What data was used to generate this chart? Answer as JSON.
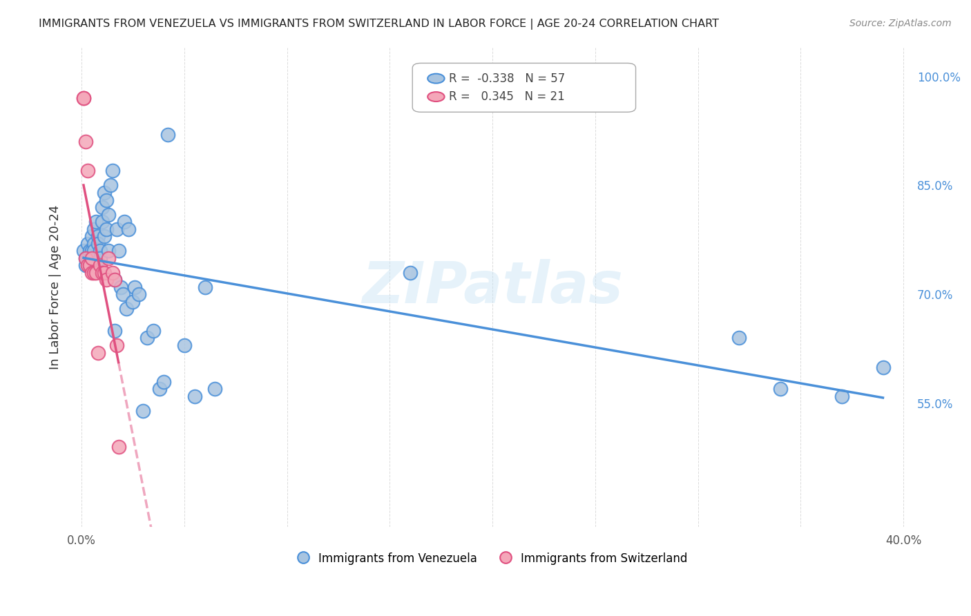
{
  "title": "IMMIGRANTS FROM VENEZUELA VS IMMIGRANTS FROM SWITZERLAND IN LABOR FORCE | AGE 20-24 CORRELATION CHART",
  "source": "Source: ZipAtlas.com",
  "ylabel": "In Labor Force | Age 20-24",
  "xlim": [
    -0.005,
    0.405
  ],
  "ylim": [
    0.38,
    1.04
  ],
  "yticks_right": [
    0.55,
    0.7,
    0.85,
    1.0
  ],
  "ytick_labels_right": [
    "55.0%",
    "70.0%",
    "85.0%",
    "100.0%"
  ],
  "legend_r_venezuela": "-0.338",
  "legend_n_venezuela": "57",
  "legend_r_switzerland": "0.345",
  "legend_n_switzerland": "21",
  "color_venezuela": "#a8c4e0",
  "color_switzerland": "#f4a7b9",
  "color_line_venezuela": "#4a90d9",
  "color_line_switzerland": "#e05080",
  "watermark": "ZIPatlas",
  "venezuela_x": [
    0.001,
    0.002,
    0.002,
    0.003,
    0.003,
    0.004,
    0.004,
    0.004,
    0.005,
    0.005,
    0.005,
    0.006,
    0.006,
    0.006,
    0.007,
    0.007,
    0.008,
    0.008,
    0.009,
    0.009,
    0.01,
    0.01,
    0.011,
    0.011,
    0.012,
    0.012,
    0.013,
    0.013,
    0.014,
    0.015,
    0.016,
    0.016,
    0.017,
    0.018,
    0.019,
    0.02,
    0.021,
    0.022,
    0.023,
    0.025,
    0.026,
    0.028,
    0.03,
    0.032,
    0.035,
    0.038,
    0.04,
    0.042,
    0.05,
    0.055,
    0.06,
    0.065,
    0.16,
    0.32,
    0.34,
    0.37,
    0.39
  ],
  "venezuela_y": [
    0.76,
    0.75,
    0.74,
    0.77,
    0.75,
    0.76,
    0.75,
    0.74,
    0.78,
    0.76,
    0.75,
    0.79,
    0.77,
    0.76,
    0.8,
    0.75,
    0.78,
    0.77,
    0.76,
    0.75,
    0.82,
    0.8,
    0.84,
    0.78,
    0.83,
    0.79,
    0.81,
    0.76,
    0.85,
    0.87,
    0.72,
    0.65,
    0.79,
    0.76,
    0.71,
    0.7,
    0.8,
    0.68,
    0.79,
    0.69,
    0.71,
    0.7,
    0.54,
    0.64,
    0.65,
    0.57,
    0.58,
    0.92,
    0.63,
    0.56,
    0.71,
    0.57,
    0.73,
    0.64,
    0.57,
    0.56,
    0.6
  ],
  "switzerland_x": [
    0.001,
    0.001,
    0.002,
    0.002,
    0.003,
    0.003,
    0.004,
    0.005,
    0.005,
    0.006,
    0.007,
    0.008,
    0.009,
    0.01,
    0.011,
    0.012,
    0.013,
    0.015,
    0.016,
    0.017,
    0.018
  ],
  "switzerland_y": [
    0.97,
    0.97,
    0.91,
    0.75,
    0.87,
    0.74,
    0.74,
    0.75,
    0.73,
    0.73,
    0.73,
    0.62,
    0.74,
    0.73,
    0.73,
    0.72,
    0.75,
    0.73,
    0.72,
    0.63,
    0.49
  ]
}
